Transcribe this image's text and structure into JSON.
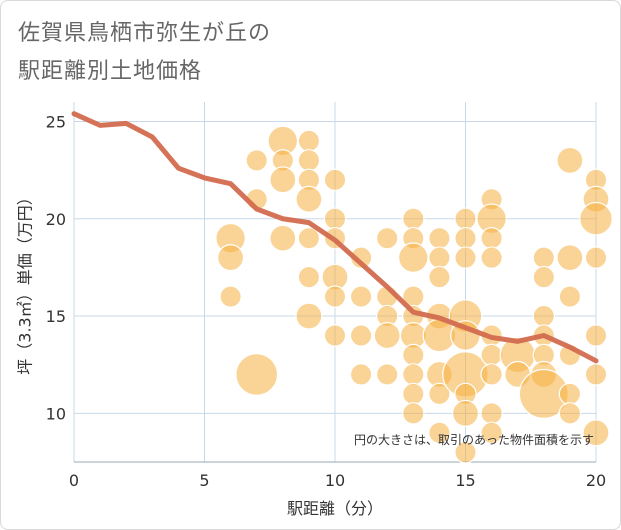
{
  "title": {
    "line1": "佐賀県鳥栖市弥生が丘の",
    "line2": "駅距離別土地価格"
  },
  "chart_data": {
    "type": "scatter",
    "xlabel": "駅距離（分）",
    "ylabel": "坪（3.3㎡）単価（万円）",
    "xlim": [
      0,
      20
    ],
    "ylim": [
      7.5,
      26
    ],
    "xticks": [
      0,
      5,
      10,
      15,
      20
    ],
    "yticks": [
      10,
      15,
      20,
      25
    ],
    "grid": true,
    "note": "円の大きさは、取引のあった物件面積を示す",
    "colors": {
      "bubble": "#f5b041",
      "trend": "#d36b4f",
      "grid": "#c8d8e8"
    },
    "bubbles": [
      {
        "x": 6,
        "y": 19,
        "s": 3
      },
      {
        "x": 6,
        "y": 18,
        "s": 2
      },
      {
        "x": 6,
        "y": 16,
        "s": 1
      },
      {
        "x": 7,
        "y": 23,
        "s": 1
      },
      {
        "x": 7,
        "y": 21,
        "s": 1
      },
      {
        "x": 7,
        "y": 12,
        "s": 8
      },
      {
        "x": 8,
        "y": 24,
        "s": 3
      },
      {
        "x": 8,
        "y": 23,
        "s": 1
      },
      {
        "x": 8,
        "y": 22,
        "s": 2
      },
      {
        "x": 8,
        "y": 19,
        "s": 2
      },
      {
        "x": 9,
        "y": 24,
        "s": 1
      },
      {
        "x": 9,
        "y": 23,
        "s": 1
      },
      {
        "x": 9,
        "y": 22,
        "s": 1
      },
      {
        "x": 9,
        "y": 21,
        "s": 2
      },
      {
        "x": 9,
        "y": 19,
        "s": 1
      },
      {
        "x": 9,
        "y": 17,
        "s": 1
      },
      {
        "x": 9,
        "y": 15,
        "s": 2
      },
      {
        "x": 10,
        "y": 22,
        "s": 1
      },
      {
        "x": 10,
        "y": 20,
        "s": 1
      },
      {
        "x": 10,
        "y": 19,
        "s": 1
      },
      {
        "x": 10,
        "y": 17,
        "s": 2
      },
      {
        "x": 10,
        "y": 16,
        "s": 1
      },
      {
        "x": 10,
        "y": 14,
        "s": 1
      },
      {
        "x": 11,
        "y": 18,
        "s": 1
      },
      {
        "x": 11,
        "y": 16,
        "s": 1
      },
      {
        "x": 11,
        "y": 14,
        "s": 1
      },
      {
        "x": 11,
        "y": 12,
        "s": 1
      },
      {
        "x": 12,
        "y": 19,
        "s": 1
      },
      {
        "x": 12,
        "y": 16,
        "s": 1
      },
      {
        "x": 12,
        "y": 15,
        "s": 1
      },
      {
        "x": 12,
        "y": 14,
        "s": 2
      },
      {
        "x": 12,
        "y": 12,
        "s": 1
      },
      {
        "x": 13,
        "y": 20,
        "s": 1
      },
      {
        "x": 13,
        "y": 19,
        "s": 1
      },
      {
        "x": 13,
        "y": 18,
        "s": 3
      },
      {
        "x": 13,
        "y": 16,
        "s": 1
      },
      {
        "x": 13,
        "y": 15,
        "s": 1
      },
      {
        "x": 13,
        "y": 14,
        "s": 2
      },
      {
        "x": 13,
        "y": 13,
        "s": 1
      },
      {
        "x": 13,
        "y": 12,
        "s": 1
      },
      {
        "x": 13,
        "y": 11,
        "s": 1
      },
      {
        "x": 13,
        "y": 10,
        "s": 1
      },
      {
        "x": 14,
        "y": 19,
        "s": 1
      },
      {
        "x": 14,
        "y": 18,
        "s": 1
      },
      {
        "x": 14,
        "y": 17,
        "s": 1
      },
      {
        "x": 14,
        "y": 15,
        "s": 2
      },
      {
        "x": 14,
        "y": 14,
        "s": 4
      },
      {
        "x": 14,
        "y": 12,
        "s": 2
      },
      {
        "x": 14,
        "y": 11,
        "s": 1
      },
      {
        "x": 14,
        "y": 9,
        "s": 1
      },
      {
        "x": 15,
        "y": 20,
        "s": 1
      },
      {
        "x": 15,
        "y": 19,
        "s": 1
      },
      {
        "x": 15,
        "y": 18,
        "s": 1
      },
      {
        "x": 15,
        "y": 15,
        "s": 4
      },
      {
        "x": 15,
        "y": 14,
        "s": 3
      },
      {
        "x": 15,
        "y": 12,
        "s": 10
      },
      {
        "x": 15,
        "y": 11,
        "s": 1
      },
      {
        "x": 15,
        "y": 10,
        "s": 2
      },
      {
        "x": 15,
        "y": 8,
        "s": 1
      },
      {
        "x": 16,
        "y": 21,
        "s": 1
      },
      {
        "x": 16,
        "y": 20,
        "s": 3
      },
      {
        "x": 16,
        "y": 19,
        "s": 1
      },
      {
        "x": 16,
        "y": 18,
        "s": 1
      },
      {
        "x": 16,
        "y": 14,
        "s": 1
      },
      {
        "x": 16,
        "y": 13,
        "s": 1
      },
      {
        "x": 16,
        "y": 12,
        "s": 1
      },
      {
        "x": 16,
        "y": 10,
        "s": 1
      },
      {
        "x": 16,
        "y": 9,
        "s": 1
      },
      {
        "x": 17,
        "y": 13,
        "s": 5
      },
      {
        "x": 17,
        "y": 12,
        "s": 2
      },
      {
        "x": 18,
        "y": 18,
        "s": 1
      },
      {
        "x": 18,
        "y": 17,
        "s": 1
      },
      {
        "x": 18,
        "y": 15,
        "s": 1
      },
      {
        "x": 18,
        "y": 14,
        "s": 1
      },
      {
        "x": 18,
        "y": 13,
        "s": 1
      },
      {
        "x": 18,
        "y": 12,
        "s": 2
      },
      {
        "x": 18,
        "y": 11,
        "s": 12
      },
      {
        "x": 19,
        "y": 23,
        "s": 2
      },
      {
        "x": 19,
        "y": 18,
        "s": 2
      },
      {
        "x": 19,
        "y": 16,
        "s": 1
      },
      {
        "x": 19,
        "y": 13,
        "s": 1
      },
      {
        "x": 19,
        "y": 11,
        "s": 1
      },
      {
        "x": 19,
        "y": 10,
        "s": 1
      },
      {
        "x": 20,
        "y": 22,
        "s": 1
      },
      {
        "x": 20,
        "y": 21,
        "s": 2
      },
      {
        "x": 20,
        "y": 20,
        "s": 4
      },
      {
        "x": 20,
        "y": 18,
        "s": 1
      },
      {
        "x": 20,
        "y": 14,
        "s": 1
      },
      {
        "x": 20,
        "y": 12,
        "s": 1
      },
      {
        "x": 20,
        "y": 9,
        "s": 2
      }
    ],
    "trend": {
      "x": [
        0,
        1,
        2,
        3,
        4,
        5,
        6,
        7,
        8,
        9,
        10,
        11,
        12,
        13,
        14,
        15,
        16,
        17,
        18,
        19,
        20
      ],
      "y": [
        25.4,
        24.8,
        24.9,
        24.2,
        22.6,
        22.1,
        21.8,
        20.5,
        20.0,
        19.8,
        18.9,
        17.7,
        16.5,
        15.2,
        14.9,
        14.4,
        13.9,
        13.7,
        14.0,
        13.4,
        12.7
      ]
    }
  }
}
